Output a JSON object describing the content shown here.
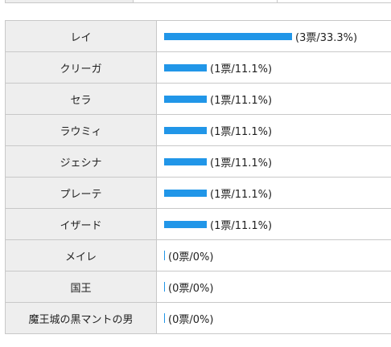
{
  "colors": {
    "bar": "#2196e8",
    "name_cell_bg": "#eeeeee",
    "border": "#c8c8c8"
  },
  "rows": [
    {
      "name": "レイ",
      "votes": 3,
      "percent": 33.3,
      "stat": "(3票/33.3%)"
    },
    {
      "name": "クリーガ",
      "votes": 1,
      "percent": 11.1,
      "stat": "(1票/11.1%)"
    },
    {
      "name": "セラ",
      "votes": 1,
      "percent": 11.1,
      "stat": "(1票/11.1%)"
    },
    {
      "name": "ラウミィ",
      "votes": 1,
      "percent": 11.1,
      "stat": "(1票/11.1%)"
    },
    {
      "name": "ジェシナ",
      "votes": 1,
      "percent": 11.1,
      "stat": "(1票/11.1%)"
    },
    {
      "name": "プレーテ",
      "votes": 1,
      "percent": 11.1,
      "stat": "(1票/11.1%)"
    },
    {
      "name": "イザード",
      "votes": 1,
      "percent": 11.1,
      "stat": "(1票/11.1%)"
    },
    {
      "name": "メイレ",
      "votes": 0,
      "percent": 0,
      "stat": "(0票/0%)"
    },
    {
      "name": "国王",
      "votes": 0,
      "percent": 0,
      "stat": "(0票/0%)"
    },
    {
      "name": "魔王城の黒マントの男",
      "votes": 0,
      "percent": 0,
      "stat": "(0票/0%)"
    }
  ]
}
